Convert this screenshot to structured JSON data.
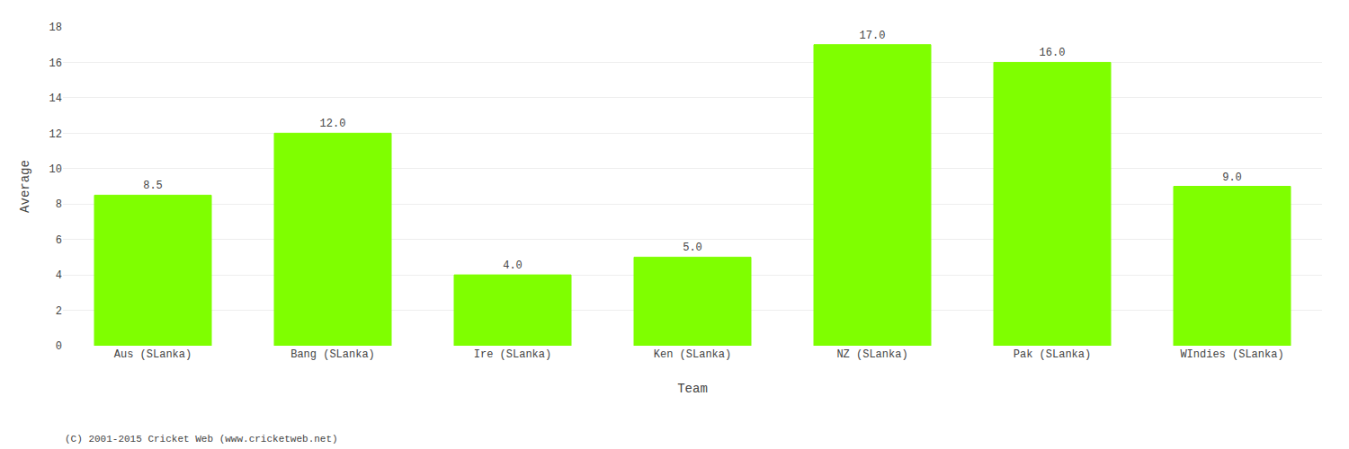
{
  "chart_data": {
    "type": "bar",
    "categories": [
      "Aus (SLanka)",
      "Bang (SLanka)",
      "Ire (SLanka)",
      "Ken (SLanka)",
      "NZ (SLanka)",
      "Pak (SLanka)",
      "WIndies (SLanka)"
    ],
    "values": [
      8.5,
      12.0,
      4.0,
      5.0,
      17.0,
      16.0,
      9.0
    ],
    "value_labels": [
      "8.5",
      "12.0",
      "4.0",
      "5.0",
      "17.0",
      "16.0",
      "9.0"
    ],
    "data_labels": true,
    "color": "#7FFF00",
    "xlabel": "Team",
    "ylabel": "Average",
    "ylim": [
      0,
      18
    ],
    "yticks": [
      0,
      2,
      4,
      6,
      8,
      10,
      12,
      14,
      16,
      18
    ],
    "grid": true,
    "annotations": [
      "(C) 2001-2015 Cricket Web (www.cricketweb.net)"
    ]
  }
}
